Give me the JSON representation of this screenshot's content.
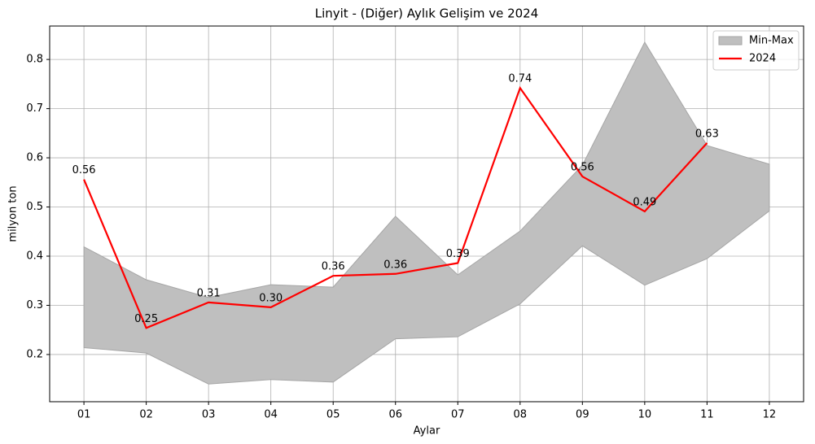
{
  "chart_data": {
    "type": "line",
    "title": "Linyit - (Diğer) Aylık Gelişim ve 2024",
    "x_label": "Aylar",
    "y_label": "milyon ton",
    "categories": [
      "01",
      "02",
      "03",
      "04",
      "05",
      "06",
      "07",
      "08",
      "09",
      "10",
      "11",
      "12"
    ],
    "series": [
      {
        "name": "Min-Max",
        "type": "band",
        "color": "#bfbfbf",
        "min": [
          0.214,
          0.203,
          0.14,
          0.149,
          0.144,
          0.232,
          0.236,
          0.303,
          0.421,
          0.341,
          0.395,
          0.492
        ],
        "max": [
          0.419,
          0.352,
          0.316,
          0.342,
          0.337,
          0.481,
          0.362,
          0.451,
          0.585,
          0.835,
          0.625,
          0.587
        ]
      },
      {
        "name": "2024",
        "type": "line",
        "color": "#ff0000",
        "values": [
          0.556,
          0.254,
          0.306,
          0.296,
          0.36,
          0.364,
          0.386,
          0.742,
          0.562,
          0.491,
          0.63,
          null
        ],
        "value_labels": [
          "0.56",
          "0.25",
          "0.31",
          "0.30",
          "0.36",
          "0.36",
          "0.39",
          "0.74",
          "0.56",
          "0.49",
          "0.63",
          null
        ]
      }
    ],
    "ylim": [
      0.104,
      0.868
    ],
    "yticks": [
      0.2,
      0.3,
      0.4,
      0.5,
      0.6,
      0.7,
      0.8
    ],
    "grid": true,
    "legend": "upper right"
  }
}
